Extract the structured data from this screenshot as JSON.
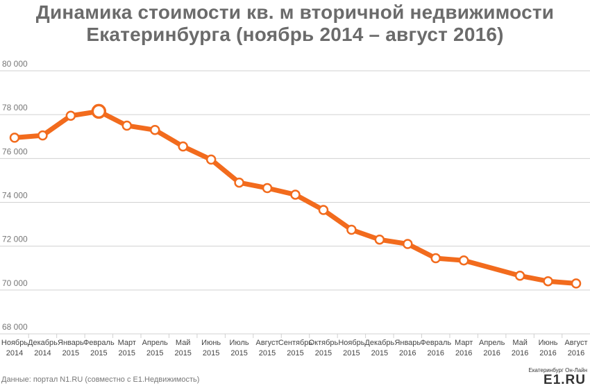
{
  "title_line1": "Динамика стоимости кв. м вторичной недвижимости",
  "title_line2": "Екатеринбурга (ноябрь 2014 – август 2016)",
  "source": "Данные: портал N1.RU (совместно с E1.Недвижимость)",
  "logo": {
    "subtitle": "Екатеринбург Он-Лайн",
    "brand": "E1.RU"
  },
  "colors": {
    "line": "#f26b1d",
    "grid": "#d0d0d0",
    "axis_text": "#777777",
    "title": "#6b6b6b"
  },
  "chart_data": {
    "type": "line",
    "title": "Динамика стоимости кв. м вторичной недвижимости Екатеринбурга (ноябрь 2014 – август 2016)",
    "xlabel": "",
    "ylabel": "",
    "ylim": [
      68000,
      80000
    ],
    "yticks": [
      "68 000",
      "70 000",
      "72 000",
      "74 000",
      "76 000",
      "78 000",
      "80 000"
    ],
    "ytick_values": [
      68000,
      70000,
      72000,
      74000,
      76000,
      78000,
      80000
    ],
    "grid": "horizontal",
    "categories": [
      [
        "Ноябрь",
        "2014"
      ],
      [
        "Декабрь",
        "2014"
      ],
      [
        "Январь",
        "2015"
      ],
      [
        "Февраль",
        "2015"
      ],
      [
        "Март",
        "2015"
      ],
      [
        "Апрель",
        "2015"
      ],
      [
        "Май",
        "2015"
      ],
      [
        "Июнь",
        "2015"
      ],
      [
        "Июль",
        "2015"
      ],
      [
        "Август",
        "2015"
      ],
      [
        "Сентябрь",
        "2015"
      ],
      [
        "Октябрь",
        "2015"
      ],
      [
        "Ноябрь",
        "2015"
      ],
      [
        "Декабрь",
        "2015"
      ],
      [
        "Январь",
        "2016"
      ],
      [
        "Февраль",
        "2016"
      ],
      [
        "Март",
        "2016"
      ],
      [
        "Апрель",
        "2016"
      ],
      [
        "Май",
        "2016"
      ],
      [
        "Июнь",
        "2016"
      ],
      [
        "Август",
        "2016"
      ]
    ],
    "series": [
      {
        "values": [
          76950,
          77050,
          77950,
          78150,
          77500,
          77300,
          76550,
          75950,
          74900,
          74650,
          74350,
          73650,
          72750,
          72300,
          72100,
          71450,
          71350,
          null,
          70650,
          70400,
          70300
        ],
        "highlight_index": 3
      }
    ]
  }
}
